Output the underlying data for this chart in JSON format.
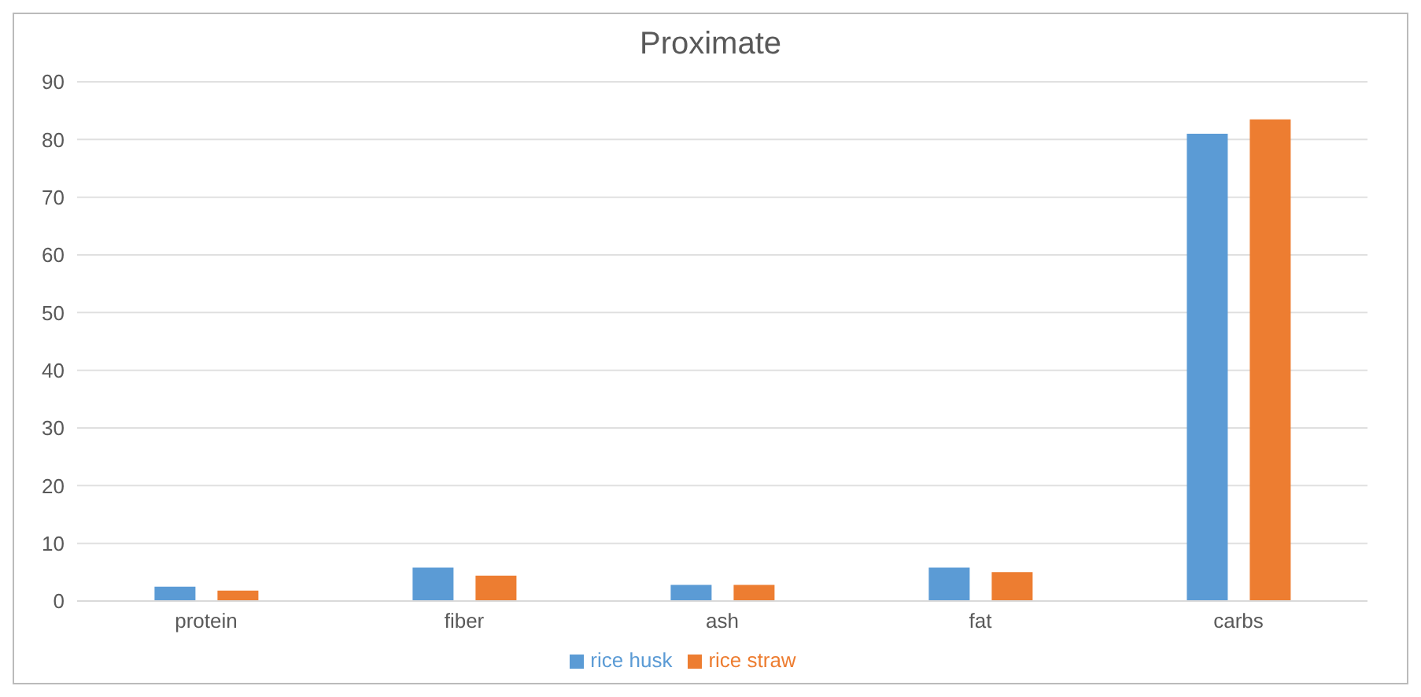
{
  "chart_data": {
    "type": "bar",
    "title": "Proximate",
    "categories": [
      "protein",
      "fiber",
      "ash",
      "fat",
      "carbs"
    ],
    "series": [
      {
        "name": "rice husk",
        "color": "#5b9bd5",
        "values": [
          2.5,
          5.8,
          2.8,
          5.8,
          81
        ]
      },
      {
        "name": "rice straw",
        "color": "#ed7d31",
        "values": [
          1.8,
          4.4,
          2.8,
          5.0,
          83.5
        ]
      }
    ],
    "ylim": [
      0,
      90
    ],
    "yticks": [
      0,
      10,
      20,
      30,
      40,
      50,
      60,
      70,
      80,
      90
    ],
    "grid": "y",
    "legend": "bottom"
  }
}
